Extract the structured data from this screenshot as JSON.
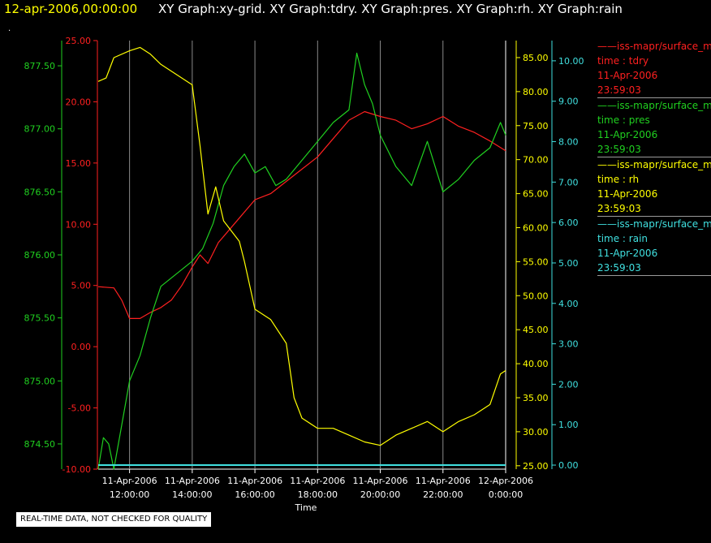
{
  "header": {
    "date": "12-apr-2006,00:00:00",
    "graphs": "XY Graph:xy-grid.  XY Graph:tdry.  XY Graph:pres.  XY Graph:rh.  XY Graph:rain",
    "dot": "."
  },
  "chart_data": {
    "type": "line",
    "x": {
      "label": "Time",
      "range": [
        "2006-04-11T11:00:00",
        "2006-04-12T00:00:00"
      ],
      "ticks": [
        {
          "t": "2006-04-11T12:00:00",
          "line1": "11-Apr-2006",
          "line2": "12:00:00"
        },
        {
          "t": "2006-04-11T14:00:00",
          "line1": "11-Apr-2006",
          "line2": "14:00:00"
        },
        {
          "t": "2006-04-11T16:00:00",
          "line1": "11-Apr-2006",
          "line2": "16:00:00"
        },
        {
          "t": "2006-04-11T18:00:00",
          "line1": "11-Apr-2006",
          "line2": "18:00:00"
        },
        {
          "t": "2006-04-11T20:00:00",
          "line1": "11-Apr-2006",
          "line2": "20:00:00"
        },
        {
          "t": "2006-04-11T22:00:00",
          "line1": "11-Apr-2006",
          "line2": "22:00:00"
        },
        {
          "t": "2006-04-12T00:00:00",
          "line1": "12-Apr-2006",
          "line2": "0:00:00"
        }
      ]
    },
    "grid": true,
    "legend_position": "right",
    "axes": [
      {
        "id": "tdry",
        "color": "#ff2020",
        "range": [
          -10,
          25
        ],
        "ticks": [
          "-10.00",
          "-5.00",
          "0.00",
          "5.00",
          "10.00",
          "15.00",
          "20.00",
          "25.00"
        ]
      },
      {
        "id": "pres",
        "color": "#20d020",
        "range": [
          874.3,
          877.7
        ],
        "ticks": [
          "874.50",
          "875.00",
          "875.50",
          "876.00",
          "876.50",
          "877.00",
          "877.50"
        ]
      },
      {
        "id": "rh",
        "color": "#ffff00",
        "range": [
          24.5,
          87.5
        ],
        "ticks": [
          "25.00",
          "30.00",
          "35.00",
          "40.00",
          "45.00",
          "50.00",
          "55.00",
          "60.00",
          "65.00",
          "70.00",
          "75.00",
          "80.00",
          "85.00"
        ]
      },
      {
        "id": "rain",
        "color": "#40e0e0",
        "range": [
          -0.1,
          10.5
        ],
        "ticks": [
          "0.00",
          "1.00",
          "2.00",
          "3.00",
          "4.00",
          "5.00",
          "6.00",
          "7.00",
          "8.00",
          "9.00",
          "10.00"
        ]
      }
    ],
    "series": [
      {
        "axis": "tdry",
        "color": "#ff2020",
        "points": [
          [
            "2006-04-11T11:00",
            4.9
          ],
          [
            "2006-04-11T11:30",
            4.8
          ],
          [
            "2006-04-11T11:45",
            3.8
          ],
          [
            "2006-04-11T12:00",
            2.3
          ],
          [
            "2006-04-11T12:20",
            2.3
          ],
          [
            "2006-04-11T12:40",
            2.8
          ],
          [
            "2006-04-11T13:00",
            3.2
          ],
          [
            "2006-04-11T13:20",
            3.8
          ],
          [
            "2006-04-11T13:40",
            5.0
          ],
          [
            "2006-04-11T14:00",
            6.5
          ],
          [
            "2006-04-11T14:15",
            7.5
          ],
          [
            "2006-04-11T14:30",
            6.8
          ],
          [
            "2006-04-11T14:50",
            8.5
          ],
          [
            "2006-04-11T15:10",
            9.5
          ],
          [
            "2006-04-11T15:30",
            10.5
          ],
          [
            "2006-04-11T16:00",
            12.0
          ],
          [
            "2006-04-11T16:30",
            12.5
          ],
          [
            "2006-04-11T17:00",
            13.5
          ],
          [
            "2006-04-11T17:30",
            14.5
          ],
          [
            "2006-04-11T18:00",
            15.5
          ],
          [
            "2006-04-11T18:30",
            17.0
          ],
          [
            "2006-04-11T19:00",
            18.5
          ],
          [
            "2006-04-11T19:30",
            19.2
          ],
          [
            "2006-04-11T20:00",
            18.8
          ],
          [
            "2006-04-11T20:30",
            18.5
          ],
          [
            "2006-04-11T21:00",
            17.8
          ],
          [
            "2006-04-11T21:30",
            18.2
          ],
          [
            "2006-04-11T22:00",
            18.8
          ],
          [
            "2006-04-11T22:30",
            18.0
          ],
          [
            "2006-04-11T23:00",
            17.5
          ],
          [
            "2006-04-11T23:30",
            16.8
          ],
          [
            "2006-04-12T00:00",
            16.0
          ]
        ]
      },
      {
        "axis": "pres",
        "color": "#20d020",
        "points": [
          [
            "2006-04-11T11:00",
            874.3
          ],
          [
            "2006-04-11T11:10",
            874.55
          ],
          [
            "2006-04-11T11:20",
            874.5
          ],
          [
            "2006-04-11T11:30",
            874.3
          ],
          [
            "2006-04-11T11:45",
            874.65
          ],
          [
            "2006-04-11T12:00",
            875.0
          ],
          [
            "2006-04-11T12:20",
            875.2
          ],
          [
            "2006-04-11T12:40",
            875.5
          ],
          [
            "2006-04-11T13:00",
            875.75
          ],
          [
            "2006-04-11T13:30",
            875.85
          ],
          [
            "2006-04-11T14:00",
            875.95
          ],
          [
            "2006-04-11T14:20",
            876.05
          ],
          [
            "2006-04-11T14:40",
            876.25
          ],
          [
            "2006-04-11T15:00",
            876.55
          ],
          [
            "2006-04-11T15:20",
            876.7
          ],
          [
            "2006-04-11T15:40",
            876.8
          ],
          [
            "2006-04-11T16:00",
            876.65
          ],
          [
            "2006-04-11T16:20",
            876.7
          ],
          [
            "2006-04-11T16:40",
            876.55
          ],
          [
            "2006-04-11T17:00",
            876.6
          ],
          [
            "2006-04-11T17:30",
            876.75
          ],
          [
            "2006-04-11T18:00",
            876.9
          ],
          [
            "2006-04-11T18:30",
            877.05
          ],
          [
            "2006-04-11T19:00",
            877.15
          ],
          [
            "2006-04-11T19:15",
            877.6
          ],
          [
            "2006-04-11T19:30",
            877.35
          ],
          [
            "2006-04-11T19:45",
            877.2
          ],
          [
            "2006-04-11T20:00",
            876.95
          ],
          [
            "2006-04-11T20:30",
            876.7
          ],
          [
            "2006-04-11T21:00",
            876.55
          ],
          [
            "2006-04-11T21:30",
            876.9
          ],
          [
            "2006-04-11T22:00",
            876.5
          ],
          [
            "2006-04-11T22:30",
            876.6
          ],
          [
            "2006-04-11T23:00",
            876.75
          ],
          [
            "2006-04-11T23:30",
            876.85
          ],
          [
            "2006-04-11T23:50",
            877.05
          ],
          [
            "2006-04-12T00:00",
            876.95
          ]
        ]
      },
      {
        "axis": "rh",
        "color": "#ffff00",
        "points": [
          [
            "2006-04-11T11:00",
            81.5
          ],
          [
            "2006-04-11T11:15",
            82.0
          ],
          [
            "2006-04-11T11:30",
            85.0
          ],
          [
            "2006-04-11T12:00",
            86.0
          ],
          [
            "2006-04-11T12:20",
            86.5
          ],
          [
            "2006-04-11T12:40",
            85.5
          ],
          [
            "2006-04-11T13:00",
            84.0
          ],
          [
            "2006-04-11T13:30",
            82.5
          ],
          [
            "2006-04-11T14:00",
            81.0
          ],
          [
            "2006-04-11T14:15",
            72.0
          ],
          [
            "2006-04-11T14:30",
            62.0
          ],
          [
            "2006-04-11T14:45",
            66.0
          ],
          [
            "2006-04-11T15:00",
            61.0
          ],
          [
            "2006-04-11T15:30",
            58.0
          ],
          [
            "2006-04-11T15:40",
            55.0
          ],
          [
            "2006-04-11T16:00",
            48.0
          ],
          [
            "2006-04-11T16:30",
            46.5
          ],
          [
            "2006-04-11T17:00",
            43.0
          ],
          [
            "2006-04-11T17:15",
            35.0
          ],
          [
            "2006-04-11T17:30",
            32.0
          ],
          [
            "2006-04-11T18:00",
            30.5
          ],
          [
            "2006-04-11T18:30",
            30.5
          ],
          [
            "2006-04-11T19:00",
            29.5
          ],
          [
            "2006-04-11T19:30",
            28.5
          ],
          [
            "2006-04-11T20:00",
            28.0
          ],
          [
            "2006-04-11T20:30",
            29.5
          ],
          [
            "2006-04-11T21:00",
            30.5
          ],
          [
            "2006-04-11T21:30",
            31.5
          ],
          [
            "2006-04-11T22:00",
            30.0
          ],
          [
            "2006-04-11T22:30",
            31.5
          ],
          [
            "2006-04-11T23:00",
            32.5
          ],
          [
            "2006-04-11T23:30",
            34.0
          ],
          [
            "2006-04-11T23:50",
            38.5
          ],
          [
            "2006-04-12T00:00",
            39.0
          ]
        ]
      },
      {
        "axis": "rain",
        "color": "#40e0e0",
        "points": [
          [
            "2006-04-11T11:00",
            0.0
          ],
          [
            "2006-04-12T00:00",
            0.0
          ]
        ]
      }
    ]
  },
  "legend": [
    {
      "dash": "——",
      "source": "iss-mapr/surface_m",
      "var": "time : tdry",
      "date": "11-Apr-2006",
      "time": "23:59:03",
      "color": "#ff2020"
    },
    {
      "dash": "——",
      "source": "iss-mapr/surface_m",
      "var": "time : pres",
      "date": "11-Apr-2006",
      "time": "23:59:03",
      "color": "#20d020"
    },
    {
      "dash": "——",
      "source": "iss-mapr/surface_m",
      "var": "time : rh",
      "date": "11-Apr-2006",
      "time": "23:59:03",
      "color": "#ffff00"
    },
    {
      "dash": "——",
      "source": "iss-mapr/surface_m",
      "var": "time : rain",
      "date": "11-Apr-2006",
      "time": "23:59:03",
      "color": "#40e0e0"
    }
  ],
  "footer": {
    "quality": "REAL-TIME DATA, NOT CHECKED FOR QUALITY"
  }
}
